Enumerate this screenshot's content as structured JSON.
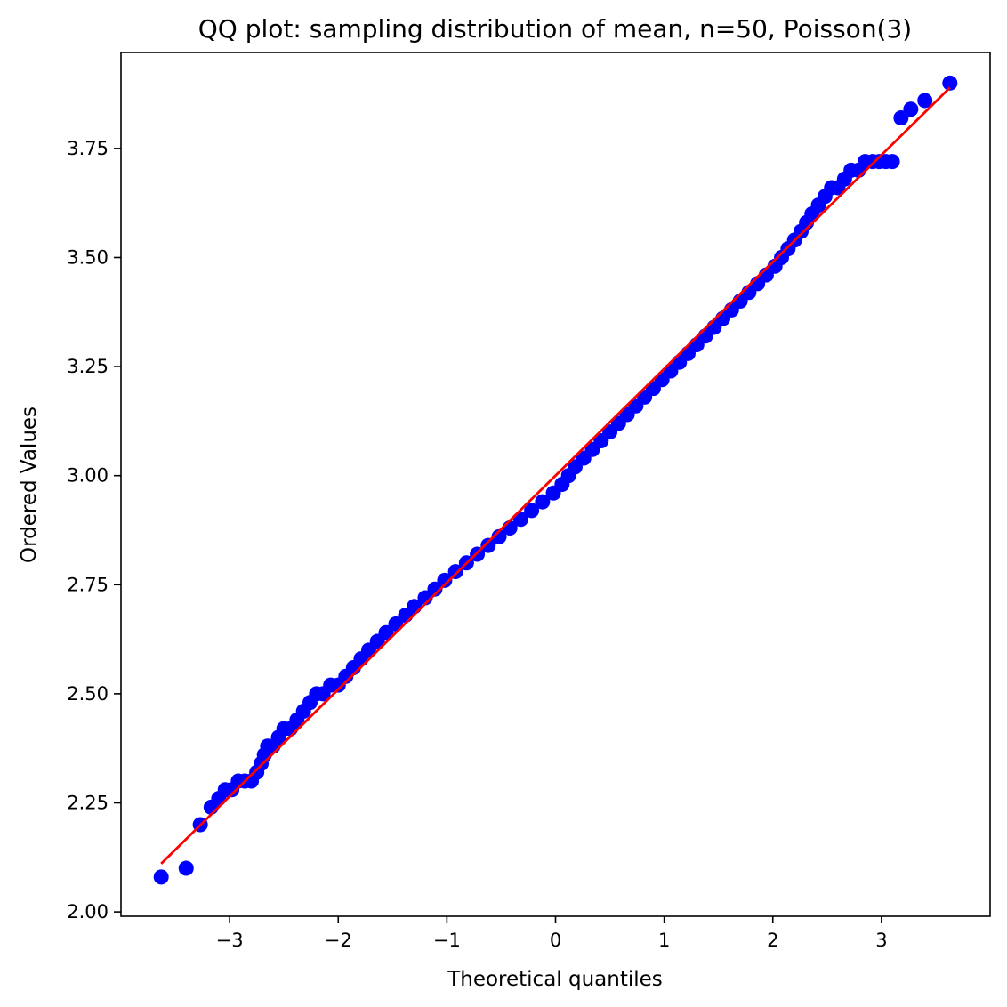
{
  "chart_data": {
    "type": "scatter",
    "title": "QQ plot: sampling distribution of mean, n=50, Poisson(3)",
    "xlabel": "Theoretical quantiles",
    "ylabel": "Ordered Values",
    "xlim": [
      -4.0,
      4.0
    ],
    "ylim": [
      1.99,
      3.97
    ],
    "x_ticks": [
      -3,
      -2,
      -1,
      0,
      1,
      2,
      3
    ],
    "x_tick_labels": [
      "−3",
      "−2",
      "−1",
      "0",
      "1",
      "2",
      "3"
    ],
    "y_ticks": [
      2.0,
      2.25,
      2.5,
      2.75,
      3.0,
      3.25,
      3.5,
      3.75
    ],
    "y_tick_labels": [
      "2.00",
      "2.25",
      "2.50",
      "2.75",
      "3.00",
      "3.25",
      "3.50",
      "3.75"
    ],
    "grid": false,
    "point_color": "#0000ff",
    "line_color": "#ff0000",
    "fit_line": {
      "slope": 0.245,
      "intercept": 3.0,
      "x_range": [
        -3.63,
        3.63
      ]
    },
    "series": [
      {
        "points": [
          [
            -3.63,
            2.08
          ],
          [
            -3.4,
            2.1
          ],
          [
            -3.27,
            2.2
          ],
          [
            -3.17,
            2.24
          ],
          [
            -3.1,
            2.26
          ],
          [
            -3.04,
            2.28
          ],
          [
            -2.98,
            2.28
          ],
          [
            -2.92,
            2.3
          ],
          [
            -2.86,
            2.3
          ],
          [
            -2.8,
            2.3
          ],
          [
            -2.75,
            2.32
          ],
          [
            -2.71,
            2.34
          ],
          [
            -2.68,
            2.36
          ],
          [
            -2.65,
            2.38
          ],
          [
            -2.6,
            2.38
          ],
          [
            -2.55,
            2.4
          ],
          [
            -2.5,
            2.42
          ],
          [
            -2.44,
            2.42
          ],
          [
            -2.38,
            2.44
          ],
          [
            -2.32,
            2.46
          ],
          [
            -2.26,
            2.48
          ],
          [
            -2.2,
            2.5
          ],
          [
            -2.14,
            2.5
          ],
          [
            -2.07,
            2.52
          ],
          [
            -2.0,
            2.52
          ],
          [
            -1.93,
            2.54
          ],
          [
            -1.86,
            2.56
          ],
          [
            -1.79,
            2.58
          ],
          [
            -1.72,
            2.6
          ],
          [
            -1.64,
            2.62
          ],
          [
            -1.56,
            2.64
          ],
          [
            -1.47,
            2.66
          ],
          [
            -1.38,
            2.68
          ],
          [
            -1.3,
            2.7
          ],
          [
            -1.2,
            2.72
          ],
          [
            -1.11,
            2.74
          ],
          [
            -1.02,
            2.76
          ],
          [
            -0.92,
            2.78
          ],
          [
            -0.82,
            2.8
          ],
          [
            -0.72,
            2.82
          ],
          [
            -0.62,
            2.84
          ],
          [
            -0.52,
            2.86
          ],
          [
            -0.42,
            2.88
          ],
          [
            -0.32,
            2.9
          ],
          [
            -0.22,
            2.92
          ],
          [
            -0.12,
            2.94
          ],
          [
            -0.02,
            2.96
          ],
          [
            0.06,
            2.98
          ],
          [
            0.12,
            3.0
          ],
          [
            0.18,
            3.02
          ],
          [
            0.26,
            3.04
          ],
          [
            0.34,
            3.06
          ],
          [
            0.42,
            3.08
          ],
          [
            0.5,
            3.1
          ],
          [
            0.58,
            3.12
          ],
          [
            0.66,
            3.14
          ],
          [
            0.74,
            3.16
          ],
          [
            0.82,
            3.18
          ],
          [
            0.9,
            3.2
          ],
          [
            0.98,
            3.22
          ],
          [
            1.06,
            3.24
          ],
          [
            1.14,
            3.26
          ],
          [
            1.22,
            3.28
          ],
          [
            1.3,
            3.3
          ],
          [
            1.38,
            3.32
          ],
          [
            1.46,
            3.34
          ],
          [
            1.54,
            3.36
          ],
          [
            1.62,
            3.38
          ],
          [
            1.7,
            3.4
          ],
          [
            1.78,
            3.42
          ],
          [
            1.86,
            3.44
          ],
          [
            1.94,
            3.46
          ],
          [
            2.02,
            3.48
          ],
          [
            2.08,
            3.5
          ],
          [
            2.14,
            3.52
          ],
          [
            2.2,
            3.54
          ],
          [
            2.26,
            3.56
          ],
          [
            2.31,
            3.58
          ],
          [
            2.36,
            3.6
          ],
          [
            2.42,
            3.62
          ],
          [
            2.48,
            3.64
          ],
          [
            2.54,
            3.66
          ],
          [
            2.6,
            3.66
          ],
          [
            2.66,
            3.68
          ],
          [
            2.72,
            3.7
          ],
          [
            2.79,
            3.7
          ],
          [
            2.85,
            3.72
          ],
          [
            2.92,
            3.72
          ],
          [
            2.98,
            3.72
          ],
          [
            3.04,
            3.72
          ],
          [
            3.1,
            3.72
          ],
          [
            3.18,
            3.82
          ],
          [
            3.27,
            3.84
          ],
          [
            3.4,
            3.86
          ],
          [
            3.63,
            3.9
          ]
        ]
      }
    ]
  }
}
